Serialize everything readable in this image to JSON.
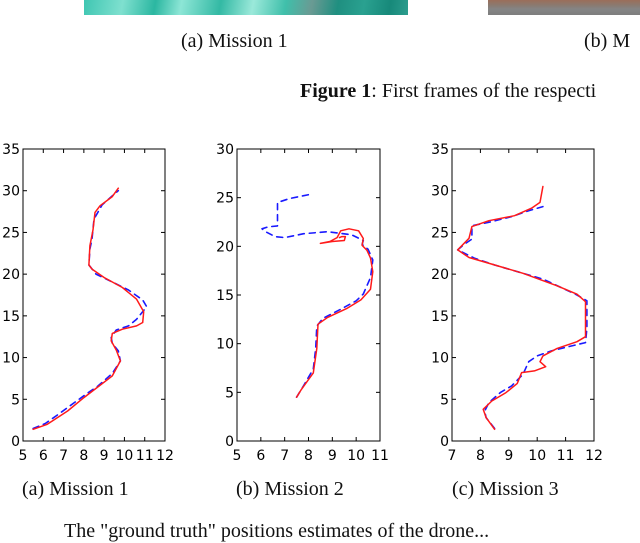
{
  "top_figure": {
    "images": [
      {
        "label": "(a) Mission 1",
        "description": "teal first frame (cropped)"
      },
      {
        "label": "(b) M",
        "description": "gray/brown first frame (cropped)"
      }
    ],
    "caption_bold": "Figure 1",
    "caption_text": ": First frames of the respecti"
  },
  "subcaptions": [
    "(a) Mission 1",
    "(b) Mission 2",
    "(c) Mission 3"
  ],
  "bottom_text": "The \"ground truth\" positions estimates of the drone...",
  "colors": {
    "ground_truth": "#1a1aff",
    "estimate": "#ff1a1a",
    "axis": "#000000"
  },
  "chart_data": [
    {
      "type": "line",
      "title": "(a) Mission 1",
      "xlabel": "",
      "ylabel": "",
      "xlim": [
        5,
        12
      ],
      "ylim": [
        0,
        35
      ],
      "xticks": [
        5,
        6,
        7,
        8,
        9,
        10,
        11,
        12
      ],
      "yticks": [
        0,
        5,
        10,
        15,
        20,
        25,
        30,
        35
      ],
      "grid": false,
      "series": [
        {
          "name": "reference (blue dashed)",
          "style": "dashed",
          "color": "#1a1aff",
          "points": [
            [
              5.5,
              1.5
            ],
            [
              6.1,
              2.1
            ],
            [
              6.8,
              3.3
            ],
            [
              7.3,
              4.2
            ],
            [
              8.1,
              5.6
            ],
            [
              8.7,
              6.6
            ],
            [
              9.4,
              8.1
            ],
            [
              9.8,
              9.6
            ],
            [
              9.7,
              10.8
            ],
            [
              9.4,
              11.7
            ],
            [
              9.35,
              12.4
            ],
            [
              9.6,
              13.3
            ],
            [
              10.2,
              13.8
            ],
            [
              10.6,
              14.6
            ],
            [
              11.1,
              16.1
            ],
            [
              10.9,
              16.9
            ],
            [
              10.2,
              18.1
            ],
            [
              9.2,
              19.3
            ],
            [
              8.6,
              20.0
            ],
            [
              8.25,
              21.1
            ],
            [
              8.3,
              23.0
            ],
            [
              8.4,
              24.2
            ],
            [
              8.5,
              26.6
            ],
            [
              8.9,
              28.3
            ],
            [
              9.5,
              29.6
            ],
            [
              9.7,
              30.0
            ]
          ]
        },
        {
          "name": "estimate (red solid)",
          "style": "solid",
          "color": "#ff1a1a",
          "points": [
            [
              5.5,
              1.4
            ],
            [
              6.2,
              2.0
            ],
            [
              7.2,
              3.6
            ],
            [
              8.0,
              5.2
            ],
            [
              8.6,
              6.3
            ],
            [
              9.4,
              7.8
            ],
            [
              9.8,
              9.6
            ],
            [
              9.6,
              10.9
            ],
            [
              9.35,
              12.0
            ],
            [
              9.4,
              12.9
            ],
            [
              9.9,
              13.4
            ],
            [
              10.6,
              13.8
            ],
            [
              10.9,
              14.2
            ],
            [
              10.95,
              15.5
            ],
            [
              10.6,
              17.0
            ],
            [
              9.9,
              18.4
            ],
            [
              9.0,
              19.6
            ],
            [
              8.4,
              20.6
            ],
            [
              8.25,
              21.1
            ],
            [
              8.3,
              23.4
            ],
            [
              8.45,
              25.3
            ],
            [
              8.55,
              27.4
            ],
            [
              8.8,
              28.2
            ],
            [
              9.4,
              29.3
            ],
            [
              9.7,
              30.3
            ]
          ]
        }
      ]
    },
    {
      "type": "line",
      "title": "(b) Mission 2",
      "xlabel": "",
      "ylabel": "",
      "xlim": [
        5,
        11
      ],
      "ylim": [
        0,
        30
      ],
      "xticks": [
        5,
        6,
        7,
        8,
        9,
        10,
        11
      ],
      "yticks": [
        0,
        5,
        10,
        15,
        20,
        25,
        30
      ],
      "grid": false,
      "series": [
        {
          "name": "reference (blue dashed)",
          "style": "dashed",
          "color": "#1a1aff",
          "points": [
            [
              7.5,
              4.5
            ],
            [
              7.8,
              5.7
            ],
            [
              8.2,
              7.4
            ],
            [
              8.3,
              9.5
            ],
            [
              8.35,
              11.8
            ],
            [
              8.6,
              12.6
            ],
            [
              9.4,
              13.6
            ],
            [
              10.0,
              14.4
            ],
            [
              10.3,
              15.1
            ],
            [
              10.6,
              16.8
            ],
            [
              10.7,
              18.6
            ],
            [
              10.5,
              19.7
            ],
            [
              10.25,
              20.2
            ],
            [
              10.3,
              20.6
            ],
            [
              9.8,
              21.2
            ],
            [
              8.8,
              21.5
            ],
            [
              7.8,
              21.3
            ],
            [
              7.0,
              20.9
            ],
            [
              6.6,
              21.0
            ],
            [
              6.2,
              21.5
            ],
            [
              6.05,
              21.8
            ],
            [
              6.3,
              22.0
            ],
            [
              6.7,
              22.1
            ],
            [
              6.7,
              24.5
            ],
            [
              7.2,
              24.9
            ],
            [
              8.0,
              25.3
            ]
          ]
        },
        {
          "name": "estimate (red solid)",
          "style": "solid",
          "color": "#ff1a1a",
          "points": [
            [
              7.5,
              4.5
            ],
            [
              7.7,
              5.3
            ],
            [
              8.2,
              7.0
            ],
            [
              8.35,
              9.5
            ],
            [
              8.4,
              12.0
            ],
            [
              8.8,
              12.7
            ],
            [
              9.6,
              13.6
            ],
            [
              10.2,
              14.5
            ],
            [
              10.6,
              15.6
            ],
            [
              10.7,
              17.4
            ],
            [
              10.6,
              18.8
            ],
            [
              10.45,
              19.6
            ],
            [
              10.25,
              20.1
            ],
            [
              10.3,
              20.8
            ],
            [
              10.1,
              21.6
            ],
            [
              9.7,
              21.8
            ],
            [
              9.35,
              21.6
            ],
            [
              9.2,
              20.9
            ],
            [
              8.9,
              20.5
            ],
            [
              8.5,
              20.3
            ],
            [
              9.0,
              20.5
            ],
            [
              9.5,
              20.6
            ],
            [
              9.55,
              21.0
            ],
            [
              9.4,
              21.0
            ],
            [
              9.3,
              20.9
            ]
          ]
        }
      ]
    },
    {
      "type": "line",
      "title": "(c) Mission 3",
      "xlabel": "",
      "ylabel": "",
      "xlim": [
        7,
        12
      ],
      "ylim": [
        0,
        35
      ],
      "xticks": [
        7,
        8,
        9,
        10,
        11,
        12
      ],
      "yticks": [
        0,
        5,
        10,
        15,
        20,
        25,
        30,
        35
      ],
      "grid": false,
      "series": [
        {
          "name": "reference (blue dashed)",
          "style": "dashed",
          "color": "#1a1aff",
          "points": [
            [
              8.5,
              1.5
            ],
            [
              8.2,
              2.8
            ],
            [
              8.15,
              3.6
            ],
            [
              8.3,
              4.6
            ],
            [
              8.7,
              5.8
            ],
            [
              9.1,
              6.6
            ],
            [
              9.5,
              8.0
            ],
            [
              9.7,
              9.5
            ],
            [
              10.0,
              10.2
            ],
            [
              10.5,
              10.8
            ],
            [
              11.1,
              11.3
            ],
            [
              11.7,
              11.8
            ],
            [
              11.75,
              13.5
            ],
            [
              11.75,
              16.8
            ],
            [
              11.4,
              17.5
            ],
            [
              10.9,
              18.3
            ],
            [
              10.2,
              19.4
            ],
            [
              9.5,
              20.1
            ],
            [
              8.5,
              21.1
            ],
            [
              7.8,
              21.9
            ],
            [
              7.2,
              22.9
            ],
            [
              7.4,
              23.5
            ],
            [
              7.7,
              24.2
            ],
            [
              7.7,
              25.8
            ],
            [
              8.4,
              26.3
            ],
            [
              9.1,
              26.9
            ],
            [
              9.7,
              27.6
            ],
            [
              10.2,
              28.1
            ]
          ]
        },
        {
          "name": "estimate (red solid)",
          "style": "solid",
          "color": "#ff1a1a",
          "points": [
            [
              8.5,
              1.4
            ],
            [
              8.2,
              2.8
            ],
            [
              8.1,
              3.8
            ],
            [
              8.4,
              4.8
            ],
            [
              8.9,
              5.8
            ],
            [
              9.3,
              6.9
            ],
            [
              9.45,
              8.2
            ],
            [
              9.9,
              8.4
            ],
            [
              10.3,
              8.9
            ],
            [
              10.1,
              9.5
            ],
            [
              10.2,
              10.2
            ],
            [
              10.7,
              11.1
            ],
            [
              11.4,
              11.9
            ],
            [
              11.7,
              12.5
            ],
            [
              11.7,
              16.7
            ],
            [
              11.4,
              17.6
            ],
            [
              10.7,
              18.6
            ],
            [
              9.5,
              20.1
            ],
            [
              8.4,
              21.2
            ],
            [
              7.6,
              22.0
            ],
            [
              7.2,
              22.9
            ],
            [
              7.6,
              24.3
            ],
            [
              7.7,
              25.7
            ],
            [
              8.3,
              26.4
            ],
            [
              9.2,
              27.0
            ],
            [
              9.8,
              27.9
            ],
            [
              10.1,
              28.6
            ],
            [
              10.2,
              30.5
            ]
          ]
        }
      ]
    }
  ]
}
